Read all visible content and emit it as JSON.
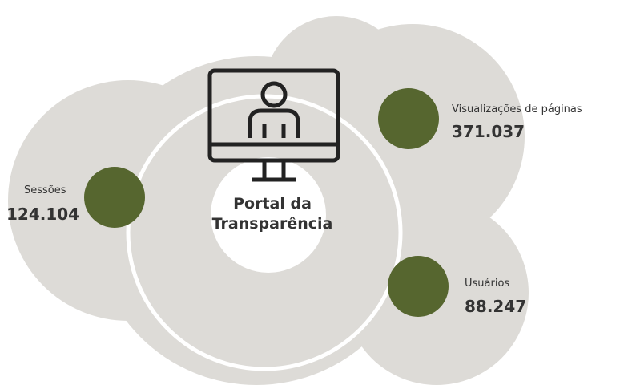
{
  "center": {
    "title_lines": [
      "Portal da",
      "Transparência"
    ]
  },
  "stats": [
    {
      "label": "Sessões",
      "value": "124.104"
    },
    {
      "label": "Visualizações de páginas",
      "value": "371.037"
    },
    {
      "label": "Usuários",
      "value": "88.247"
    }
  ]
}
